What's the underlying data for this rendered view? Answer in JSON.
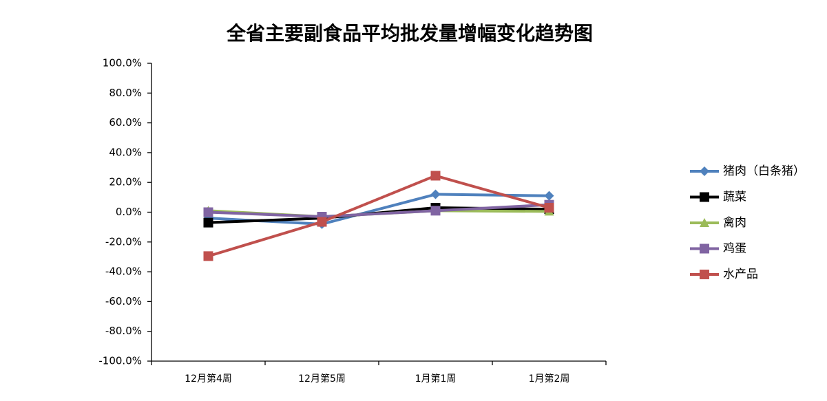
{
  "chart_data": {
    "type": "line",
    "title": "全省主要副食品平均批发量增幅变化趋势图",
    "categories": [
      "12月第4周",
      "12月第5周",
      "1月第1周",
      "1月第2周"
    ],
    "series": [
      {
        "name": "猪肉（白条猪）",
        "color": "#4f81bd",
        "marker": "diamond",
        "values": [
          -4,
          -8,
          12,
          11
        ]
      },
      {
        "name": "蔬菜",
        "color": "#000000",
        "marker": "square",
        "values": [
          -7,
          -4,
          3,
          2
        ]
      },
      {
        "name": "禽肉",
        "color": "#9bbb59",
        "marker": "triangle",
        "values": [
          1,
          -3,
          1,
          0.5
        ]
      },
      {
        "name": "鸡蛋",
        "color": "#8064a2",
        "marker": "square",
        "values": [
          0,
          -3,
          1,
          5
        ]
      },
      {
        "name": "水产品",
        "color": "#c0504d",
        "marker": "square",
        "values": [
          -29.5,
          -6.5,
          24.5,
          3
        ]
      }
    ],
    "ylim": [
      -100,
      100
    ],
    "yticks": [
      {
        "value": -100,
        "label": "-100.0%"
      },
      {
        "value": -80,
        "label": "-80.0%"
      },
      {
        "value": -60,
        "label": "-60.0%"
      },
      {
        "value": -40,
        "label": "-40.0%"
      },
      {
        "value": -20,
        "label": "-20.0%"
      },
      {
        "value": 0,
        "label": "0.0%"
      },
      {
        "value": 20,
        "label": "20.0%"
      },
      {
        "value": 40,
        "label": "40.0%"
      },
      {
        "value": 60,
        "label": "60.0%"
      },
      {
        "value": 80,
        "label": "80.0%"
      },
      {
        "value": 100,
        "label": "100.0%"
      }
    ],
    "grid": false,
    "legend": "right"
  }
}
